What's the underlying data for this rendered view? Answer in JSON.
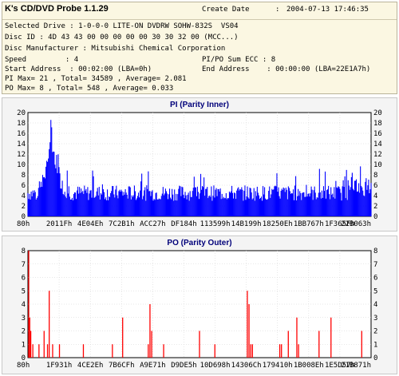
{
  "app": {
    "title": "K's CD/DVD Probe 1.1.29"
  },
  "info": {
    "create_label": "Create Date",
    "create_value": "2004-07-13 17:46:35",
    "selected_drive": "Selected Drive : 1-0-0-0 LITE-ON DVDRW SOHW-832S  VS04",
    "disc_id": "Disc ID : 4D 43 43 00 00 00 00 00 30 30 32 00 (MCC...)",
    "manufacturer": "Disc Manufacturer : Mitsubishi Chemical Corporation",
    "speed": "Speed         : 4",
    "sum_ecc": "PI/PO Sum ECC : 8",
    "start_address": "Start Address  : 00:02:00 (LBA=0h)",
    "end_address": "End Address    : 00:00:00 (LBA=22E1A7h)",
    "pi_stats": "PI Max= 21 , Total= 34589 , Average= 2.081",
    "po_stats": "PO Max= 8 , Total= 548 , Average= 0.033"
  },
  "pi_chart": {
    "title": "PI (Parity Inner)",
    "bar_color": "#0000ff"
  },
  "po_chart": {
    "title": "PO (Parity Outer)",
    "bar_color": "#ff0000"
  },
  "chart_data": [
    {
      "type": "bar",
      "title": "PI (Parity Inner)",
      "ylim": [
        0,
        20
      ],
      "y_ticks": [
        0,
        2,
        4,
        6,
        8,
        10,
        12,
        14,
        16,
        18,
        20
      ],
      "x_tick_labels": [
        "80h",
        "2011Fh",
        "4E04Eh",
        "7C2B1h",
        "ACC27h",
        "DF184h",
        "113599h",
        "14B199h",
        "18250Eh",
        "1BB767h",
        "1F365Fh",
        "22B063h"
      ],
      "grid": true,
      "peak": {
        "position_fraction": 0.07,
        "value": 21
      },
      "baseline_range": [
        3,
        6
      ],
      "max": 21,
      "total": 34589,
      "average": 2.081
    },
    {
      "type": "bar",
      "title": "PO (Parity Outer)",
      "ylim": [
        0,
        8
      ],
      "y_ticks": [
        0,
        1,
        2,
        3,
        4,
        5,
        6,
        7,
        8
      ],
      "x_tick_labels": [
        "80h",
        "1F931h",
        "4CE2Eh",
        "7B6CFh",
        "A9E71h",
        "D9DE5h",
        "10D698h",
        "14306Ch",
        "179410h",
        "1B008Eh",
        "1E5D57h",
        "21B871h"
      ],
      "grid": true,
      "spikes": [
        {
          "x": 0.0,
          "value": 8
        },
        {
          "x": 0.003,
          "value": 3
        },
        {
          "x": 0.006,
          "value": 2
        },
        {
          "x": 0.012,
          "value": 1
        },
        {
          "x": 0.03,
          "value": 1
        },
        {
          "x": 0.045,
          "value": 2
        },
        {
          "x": 0.055,
          "value": 1
        },
        {
          "x": 0.06,
          "value": 5
        },
        {
          "x": 0.07,
          "value": 1
        },
        {
          "x": 0.09,
          "value": 1
        },
        {
          "x": 0.16,
          "value": 1
        },
        {
          "x": 0.245,
          "value": 1
        },
        {
          "x": 0.275,
          "value": 3
        },
        {
          "x": 0.35,
          "value": 1
        },
        {
          "x": 0.355,
          "value": 4
        },
        {
          "x": 0.36,
          "value": 2
        },
        {
          "x": 0.395,
          "value": 1
        },
        {
          "x": 0.5,
          "value": 2
        },
        {
          "x": 0.545,
          "value": 1
        },
        {
          "x": 0.64,
          "value": 5
        },
        {
          "x": 0.645,
          "value": 4
        },
        {
          "x": 0.65,
          "value": 1
        },
        {
          "x": 0.655,
          "value": 1
        },
        {
          "x": 0.735,
          "value": 1
        },
        {
          "x": 0.74,
          "value": 1
        },
        {
          "x": 0.76,
          "value": 2
        },
        {
          "x": 0.785,
          "value": 3
        },
        {
          "x": 0.79,
          "value": 1
        },
        {
          "x": 0.85,
          "value": 2
        },
        {
          "x": 0.885,
          "value": 3
        },
        {
          "x": 0.975,
          "value": 2
        }
      ],
      "max": 8,
      "total": 548,
      "average": 0.033
    }
  ]
}
